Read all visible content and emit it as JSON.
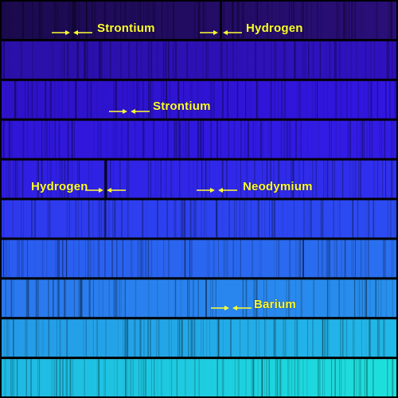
{
  "spectrum": {
    "strip_colors": [
      "#1e0a5c",
      "#2a0fb0",
      "#2a14d8",
      "#2a18e0",
      "#2a25e8",
      "#2a3df0",
      "#2a6cf0",
      "#2a7cf0",
      "#24a6f0",
      "#1ed6e6"
    ],
    "label_color": "#ffff33"
  },
  "annotations": [
    {
      "id": "strontium-1",
      "text": "Strontium",
      "strip": 1
    },
    {
      "id": "hydrogen-1",
      "text": "Hydrogen",
      "strip": 1
    },
    {
      "id": "strontium-2",
      "text": "Strontium",
      "strip": 3
    },
    {
      "id": "hydrogen-2",
      "text": "Hydrogen",
      "strip": 5
    },
    {
      "id": "neodymium",
      "text": "Neodymium",
      "strip": 5
    },
    {
      "id": "barium",
      "text": "Barium",
      "strip": 8
    }
  ]
}
